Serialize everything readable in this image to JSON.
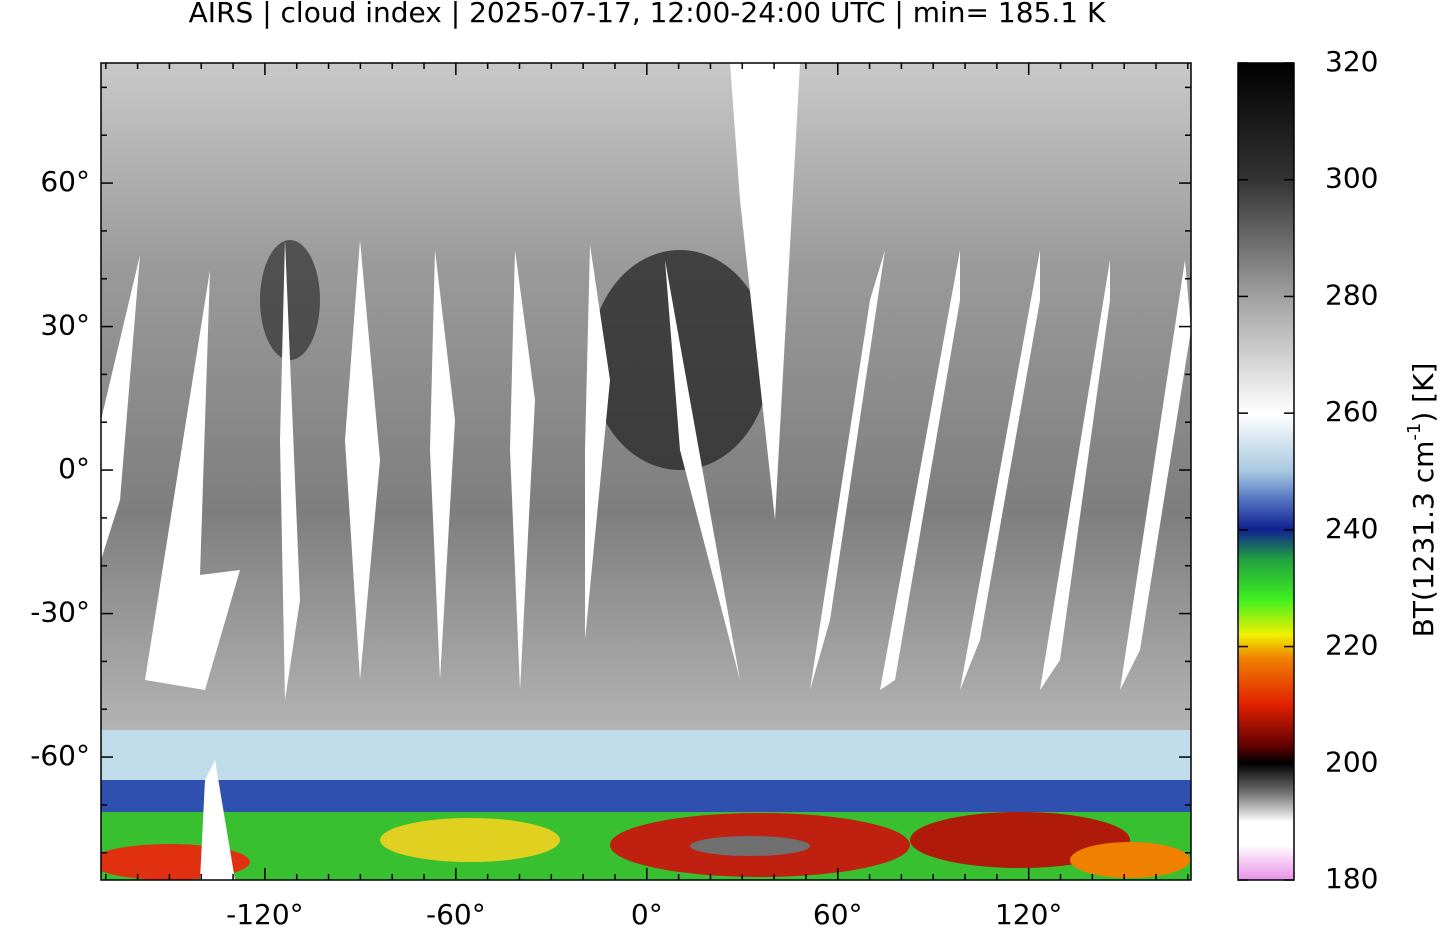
{
  "title": "AIRS | cloud index | 2025-07-17, 12:00-24:00 UTC | min= 185.1 K",
  "map": {
    "xlim": [
      -171.5,
      171
    ],
    "ylim": [
      -85.7,
      85.1
    ],
    "xticks": [
      {
        "value": -120,
        "label": "-120°"
      },
      {
        "value": -60,
        "label": "-60°"
      },
      {
        "value": 0,
        "label": "0°"
      },
      {
        "value": 60,
        "label": "60°"
      },
      {
        "value": 120,
        "label": "120°"
      }
    ],
    "yticks": [
      {
        "value": -60,
        "label": "-60°"
      },
      {
        "value": -30,
        "label": "-30°"
      },
      {
        "value": 0,
        "label": "0°"
      },
      {
        "value": 30,
        "label": "30°"
      },
      {
        "value": 60,
        "label": "60°"
      }
    ]
  },
  "colorbar": {
    "range": [
      180,
      320
    ],
    "ticks": [
      180,
      200,
      220,
      240,
      260,
      280,
      300,
      320
    ],
    "label_prefix": "BT(1231.3 cm",
    "label_superscript": "-1",
    "label_suffix": ") [K]"
  }
}
